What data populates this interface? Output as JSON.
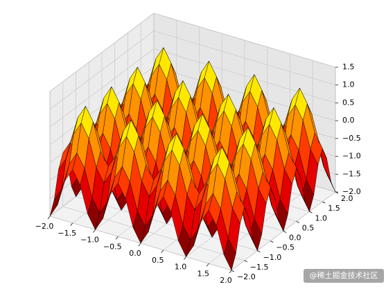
{
  "chart_data": {
    "type": "surface",
    "colormap": "hot",
    "edgecolor": "#000000",
    "grid": true,
    "x": [
      -2,
      -1.833,
      -1.667,
      -1.5,
      -1.333,
      -1.167,
      -1,
      -0.833,
      -0.667,
      -0.5,
      -0.333,
      -0.167,
      0,
      0.167,
      0.333,
      0.5,
      0.667,
      0.833,
      1,
      1.167,
      1.333,
      1.5,
      1.667,
      1.833,
      2
    ],
    "y": [
      -2,
      -1.833,
      -1.667,
      -1.5,
      -1.333,
      -1.167,
      -1,
      -0.833,
      -0.667,
      -0.5,
      -0.333,
      -0.167,
      0,
      0.167,
      0.333,
      0.5,
      0.667,
      0.833,
      1,
      1.167,
      1.333,
      1.5,
      1.667,
      1.833,
      2
    ],
    "z": [
      [
        -2,
        -1.625,
        -0.875,
        -0.5,
        -0.875,
        -1.625,
        -2,
        -1.625,
        -0.875,
        -0.5,
        -0.875,
        -1.625,
        -2,
        -1.625,
        -0.875,
        -0.5,
        -0.875,
        -1.625,
        -2,
        -1.625,
        -0.875,
        -0.5,
        -0.875,
        -1.625,
        -2
      ],
      [
        -1.625,
        -1.25,
        -0.5,
        -0.125,
        -0.5,
        -1.25,
        -1.625,
        -1.25,
        -0.5,
        -0.125,
        -0.5,
        -1.25,
        -1.625,
        -1.25,
        -0.5,
        -0.125,
        -0.5,
        -1.25,
        -1.625,
        -1.25,
        -0.5,
        -0.125,
        -0.5,
        -1.25,
        -1.625
      ],
      [
        -0.875,
        -0.5,
        0.25,
        0.625,
        0.25,
        -0.5,
        -0.875,
        -0.5,
        0.25,
        0.625,
        0.25,
        -0.5,
        -0.875,
        -0.5,
        0.25,
        0.625,
        0.25,
        -0.5,
        -0.875,
        -0.5,
        0.25,
        0.625,
        0.25,
        -0.5,
        -0.875
      ],
      [
        -0.5,
        -0.125,
        0.625,
        1,
        0.625,
        -0.125,
        -0.5,
        -0.125,
        0.625,
        1,
        0.625,
        -0.125,
        -0.5,
        -0.125,
        0.625,
        1,
        0.625,
        -0.125,
        -0.5,
        -0.125,
        0.625,
        1,
        0.625,
        -0.125,
        -0.5
      ],
      [
        -0.875,
        -0.5,
        0.25,
        0.625,
        0.25,
        -0.5,
        -0.875,
        -0.5,
        0.25,
        0.625,
        0.25,
        -0.5,
        -0.875,
        -0.5,
        0.25,
        0.625,
        0.25,
        -0.5,
        -0.875,
        -0.5,
        0.25,
        0.625,
        0.25,
        -0.5,
        -0.875
      ],
      [
        -1.625,
        -1.25,
        -0.5,
        -0.125,
        -0.5,
        -1.25,
        -1.625,
        -1.25,
        -0.5,
        -0.125,
        -0.5,
        -1.25,
        -1.625,
        -1.25,
        -0.5,
        -0.125,
        -0.5,
        -1.25,
        -1.625,
        -1.25,
        -0.5,
        -0.125,
        -0.5,
        -1.25,
        -1.625
      ],
      [
        -2,
        -1.625,
        -0.875,
        -0.5,
        -0.875,
        -1.625,
        -2,
        -1.625,
        -0.875,
        -0.5,
        -0.875,
        -1.625,
        -2,
        -1.625,
        -0.875,
        -0.5,
        -0.875,
        -1.625,
        -2,
        -1.625,
        -0.875,
        -0.5,
        -0.875,
        -1.625,
        -2
      ],
      [
        -1.625,
        -1.25,
        -0.5,
        -0.125,
        -0.5,
        -1.25,
        -1.625,
        -1.25,
        -0.5,
        -0.125,
        -0.5,
        -1.25,
        -1.625,
        -1.25,
        -0.5,
        -0.125,
        -0.5,
        -1.25,
        -1.625,
        -1.25,
        -0.5,
        -0.125,
        -0.5,
        -1.25,
        -1.625
      ],
      [
        -0.875,
        -0.5,
        0.25,
        0.625,
        0.25,
        -0.5,
        -0.875,
        -0.5,
        0.25,
        0.625,
        0.25,
        -0.5,
        -0.875,
        -0.5,
        0.25,
        0.625,
        0.25,
        -0.5,
        -0.875,
        -0.5,
        0.25,
        0.625,
        0.25,
        -0.5,
        -0.875
      ],
      [
        -0.5,
        -0.125,
        0.625,
        1,
        0.625,
        -0.125,
        -0.5,
        -0.125,
        0.625,
        1,
        0.625,
        -0.125,
        -0.5,
        -0.125,
        0.625,
        1,
        0.625,
        -0.125,
        -0.5,
        -0.125,
        0.625,
        1,
        0.625,
        -0.125,
        -0.5
      ],
      [
        -0.875,
        -0.5,
        0.25,
        0.625,
        0.25,
        -0.5,
        -0.875,
        -0.5,
        0.25,
        0.625,
        0.25,
        -0.5,
        -0.875,
        -0.5,
        0.25,
        0.625,
        0.25,
        -0.5,
        -0.875,
        -0.5,
        0.25,
        0.625,
        0.25,
        -0.5,
        -0.875
      ],
      [
        -1.625,
        -1.25,
        -0.5,
        -0.125,
        -0.5,
        -1.25,
        -1.625,
        -1.25,
        -0.5,
        -0.125,
        -0.5,
        -1.25,
        -1.625,
        -1.25,
        -0.5,
        -0.125,
        -0.5,
        -1.25,
        -1.625,
        -1.25,
        -0.5,
        -0.125,
        -0.5,
        -1.25,
        -1.625
      ],
      [
        -2,
        -1.625,
        -0.875,
        -0.5,
        -0.875,
        -1.625,
        -2,
        -1.625,
        -0.875,
        -0.5,
        -0.875,
        -1.625,
        -2,
        -1.625,
        -0.875,
        -0.5,
        -0.875,
        -1.625,
        -2,
        -1.625,
        -0.875,
        -0.5,
        -0.875,
        -1.625,
        -2
      ],
      [
        -1.625,
        -1.25,
        -0.5,
        -0.125,
        -0.5,
        -1.25,
        -1.625,
        -1.25,
        -0.5,
        -0.125,
        -0.5,
        -1.25,
        -1.625,
        -1.25,
        -0.5,
        -0.125,
        -0.5,
        -1.25,
        -1.625,
        -1.25,
        -0.5,
        -0.125,
        -0.5,
        -1.25,
        -1.625
      ],
      [
        -0.875,
        -0.5,
        0.25,
        0.625,
        0.25,
        -0.5,
        -0.875,
        -0.5,
        0.25,
        0.625,
        0.25,
        -0.5,
        -0.875,
        -0.5,
        0.25,
        0.625,
        0.25,
        -0.5,
        -0.875,
        -0.5,
        0.25,
        0.625,
        0.25,
        -0.5,
        -0.875
      ],
      [
        -0.5,
        -0.125,
        0.625,
        1,
        0.625,
        -0.125,
        -0.5,
        -0.125,
        0.625,
        1,
        0.625,
        -0.125,
        -0.5,
        -0.125,
        0.625,
        1,
        0.625,
        -0.125,
        -0.5,
        -0.125,
        0.625,
        1,
        0.625,
        -0.125,
        -0.5
      ],
      [
        -0.875,
        -0.5,
        0.25,
        0.625,
        0.25,
        -0.5,
        -0.875,
        -0.5,
        0.25,
        0.625,
        0.25,
        -0.5,
        -0.875,
        -0.5,
        0.25,
        0.625,
        0.25,
        -0.5,
        -0.875,
        -0.5,
        0.25,
        0.625,
        0.25,
        -0.5,
        -0.875
      ],
      [
        -1.625,
        -1.25,
        -0.5,
        -0.125,
        -0.5,
        -1.25,
        -1.625,
        -1.25,
        -0.5,
        -0.125,
        -0.5,
        -1.25,
        -1.625,
        -1.25,
        -0.5,
        -0.125,
        -0.5,
        -1.25,
        -1.625,
        -1.25,
        -0.5,
        -0.125,
        -0.5,
        -1.25,
        -1.625
      ],
      [
        -2,
        -1.625,
        -0.875,
        -0.5,
        -0.875,
        -1.625,
        -2,
        -1.625,
        -0.875,
        -0.5,
        -0.875,
        -1.625,
        -2,
        -1.625,
        -0.875,
        -0.5,
        -0.875,
        -1.625,
        -2,
        -1.625,
        -0.875,
        -0.5,
        -0.875,
        -1.625,
        -2
      ],
      [
        -1.625,
        -1.25,
        -0.5,
        -0.125,
        -0.5,
        -1.25,
        -1.625,
        -1.25,
        -0.5,
        -0.125,
        -0.5,
        -1.25,
        -1.625,
        -1.25,
        -0.5,
        -0.125,
        -0.5,
        -1.25,
        -1.625,
        -1.25,
        -0.5,
        -0.125,
        -0.5,
        -1.25,
        -1.625
      ],
      [
        -0.875,
        -0.5,
        0.25,
        0.625,
        0.25,
        -0.5,
        -0.875,
        -0.5,
        0.25,
        0.625,
        0.25,
        -0.5,
        -0.875,
        -0.5,
        0.25,
        0.625,
        0.25,
        -0.5,
        -0.875,
        -0.5,
        0.25,
        0.625,
        0.25,
        -0.5,
        -0.875
      ],
      [
        -0.5,
        -0.125,
        0.625,
        1,
        0.625,
        -0.125,
        -0.5,
        -0.125,
        0.625,
        1,
        0.625,
        -0.125,
        -0.5,
        -0.125,
        0.625,
        1,
        0.625,
        -0.125,
        -0.5,
        -0.125,
        0.625,
        1,
        0.625,
        -0.125,
        -0.5
      ],
      [
        -0.875,
        -0.5,
        0.25,
        0.625,
        0.25,
        -0.5,
        -0.875,
        -0.5,
        0.25,
        0.625,
        0.25,
        -0.5,
        -0.875,
        -0.5,
        0.25,
        0.625,
        0.25,
        -0.5,
        -0.875,
        -0.5,
        0.25,
        0.625,
        0.25,
        -0.5,
        -0.875
      ],
      [
        -1.625,
        -1.25,
        -0.5,
        -0.125,
        -0.5,
        -1.25,
        -1.625,
        -1.25,
        -0.5,
        -0.125,
        -0.5,
        -1.25,
        -1.625,
        -1.25,
        -0.5,
        -0.125,
        -0.5,
        -1.25,
        -1.625,
        -1.25,
        -0.5,
        -0.125,
        -0.5,
        -1.25,
        -1.625
      ],
      [
        -2,
        -1.625,
        -0.875,
        -0.5,
        -0.875,
        -1.625,
        -2,
        -1.625,
        -0.875,
        -0.5,
        -0.875,
        -1.625,
        -2,
        -1.625,
        -0.875,
        -0.5,
        -0.875,
        -1.625,
        -2,
        -1.625,
        -0.875,
        -0.5,
        -0.875,
        -1.625,
        -2
      ]
    ],
    "xlim": [
      -2,
      2
    ],
    "ylim": [
      -2,
      2
    ],
    "zlim": [
      -2,
      1.5
    ],
    "xticks": [
      {
        "value": -2,
        "label": "−2.0"
      },
      {
        "value": -1.5,
        "label": "−1.5"
      },
      {
        "value": -1,
        "label": "−1.0"
      },
      {
        "value": -0.5,
        "label": "−0.5"
      },
      {
        "value": 0,
        "label": "0.0"
      },
      {
        "value": 0.5,
        "label": "0.5"
      },
      {
        "value": 1,
        "label": "1.0"
      },
      {
        "value": 1.5,
        "label": "1.5"
      },
      {
        "value": 2,
        "label": "2.0"
      }
    ],
    "yticks": [
      {
        "value": -2,
        "label": "−2.0"
      },
      {
        "value": -1.5,
        "label": "−1.5"
      },
      {
        "value": -1,
        "label": "−1.0"
      },
      {
        "value": -0.5,
        "label": "−0.5"
      },
      {
        "value": 0,
        "label": "0.0"
      },
      {
        "value": 0.5,
        "label": "0.5"
      },
      {
        "value": 1,
        "label": "1.0"
      },
      {
        "value": 1.5,
        "label": "1.5"
      },
      {
        "value": 2,
        "label": "2.0"
      }
    ],
    "zticks": [
      {
        "value": -2,
        "label": "−2.0"
      },
      {
        "value": -1.5,
        "label": "−1.5"
      },
      {
        "value": -1,
        "label": "−1.0"
      },
      {
        "value": -0.5,
        "label": "−0.5"
      },
      {
        "value": 0,
        "label": "0.0"
      },
      {
        "value": 0.5,
        "label": "0.5"
      },
      {
        "value": 1,
        "label": "1.0"
      },
      {
        "value": 1.5,
        "label": "1.5"
      }
    ],
    "watermark": "@稀土掘金技术社区"
  }
}
